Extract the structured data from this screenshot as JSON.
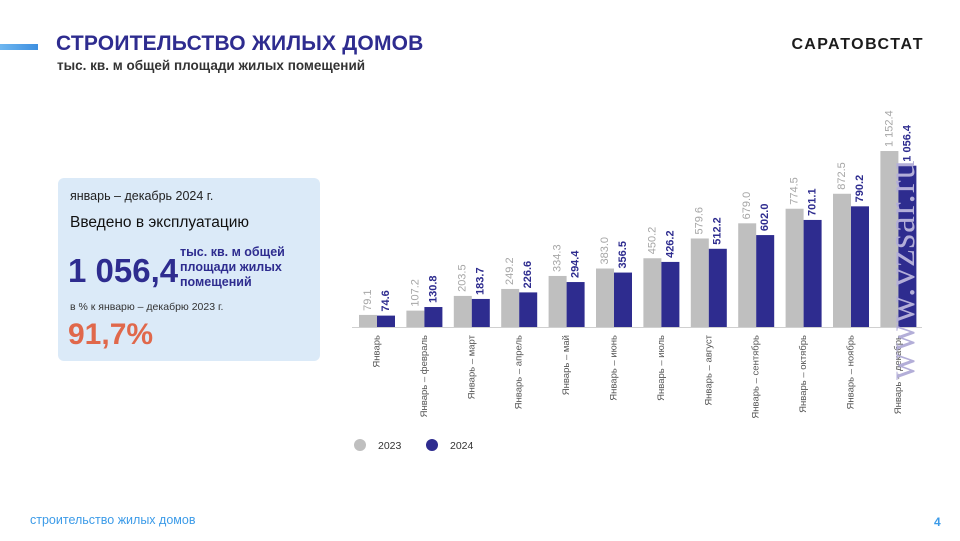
{
  "header": {
    "title": "СТРОИТЕЛЬСТВО ЖИЛЫХ ДОМОВ",
    "subtitle": "тыс. кв. м общей площади жилых помещений",
    "brand": "САРАТОВСТАТ"
  },
  "info_box": {
    "period": "январь – декабрь 2024 г.",
    "caption": "Введено в эксплуатацию",
    "value": "1 056,4",
    "unit": "тыс. кв. м общей площади жилых помещений",
    "comparison_label": "в % к январю – декабрю 2023 г.",
    "percent": "91,7%"
  },
  "chart_data": {
    "type": "bar",
    "categories": [
      "Январь",
      "Январь – февраль",
      "Январь – март",
      "Январь – апрель",
      "Январь – май",
      "Январь – июнь",
      "Январь – июль",
      "Январь – август",
      "Январь – сентябрь",
      "Январь – октябрь",
      "Январь – ноябрь",
      "Январь – декабрь"
    ],
    "series": [
      {
        "name": "2023",
        "color": "#bfbfbf",
        "values": [
          79.1,
          107.2,
          203.5,
          249.2,
          334.3,
          383.0,
          450.2,
          579.6,
          679.0,
          774.5,
          872.5,
          1152.4
        ],
        "labels": [
          "79.1",
          "107.2",
          "203.5",
          "249.2",
          "334.3",
          "383.0",
          "450.2",
          "579.6",
          "679.0",
          "774.5",
          "872.5",
          "1 152.4"
        ]
      },
      {
        "name": "2024",
        "color": "#2e2c8f",
        "values": [
          74.6,
          130.8,
          183.7,
          226.6,
          294.4,
          356.5,
          426.2,
          512.2,
          602.0,
          701.1,
          790.2,
          1056.4
        ],
        "labels": [
          "74.6",
          "130.8",
          "183.7",
          "226.6",
          "294.4",
          "356.5",
          "426.2",
          "512.2",
          "602.0",
          "701.1",
          "790.2",
          "1 056.4"
        ]
      }
    ],
    "legend_position": "bottom",
    "grid": false
  },
  "footer": {
    "section": "строительство жилых домов",
    "page": "4"
  },
  "watermark": "www.vzsar.ru"
}
